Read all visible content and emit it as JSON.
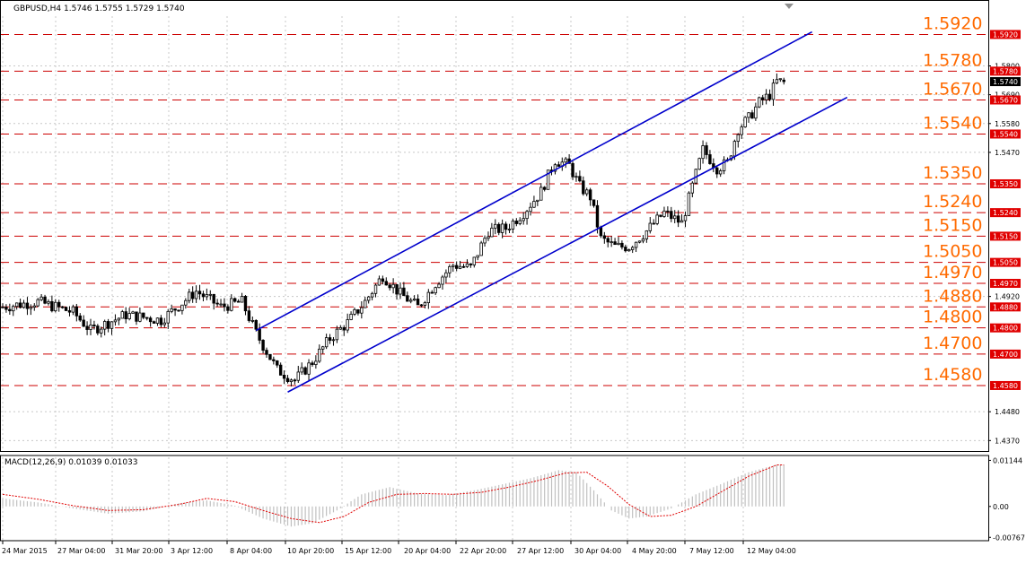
{
  "chart_data": [
    {
      "type": "candlestick",
      "title": "GBPUSD,H4  1.5746 1.5755 1.5729 1.5740",
      "symbol": "GBPUSD",
      "timeframe": "H4",
      "last_bar": {
        "open": 1.5746,
        "high": 1.5755,
        "low": 1.5729,
        "close": 1.574
      },
      "current_price_label": "1.5740",
      "ylim": [
        1.433,
        1.599
      ],
      "y_ticks": [
        "1.5800",
        "1.5690",
        "1.5580",
        "1.5470",
        "1.4920",
        "1.4480",
        "1.4370"
      ],
      "x_ticks": [
        "24 Mar 2015",
        "27 Mar 04:00",
        "31 Mar 20:00",
        "3 Apr 12:00",
        "8 Apr 04:00",
        "10 Apr 20:00",
        "15 Apr 12:00",
        "20 Apr 04:00",
        "22 Apr 20:00",
        "27 Apr 12:00",
        "30 Apr 04:00",
        "4 May 20:00",
        "7 May 12:00",
        "12 May 04:00"
      ],
      "levels": [
        {
          "value": 1.592,
          "label": "1.5920",
          "tag": "1.5920"
        },
        {
          "value": 1.578,
          "label": "1.5780",
          "tag": "1.5780"
        },
        {
          "value": 1.567,
          "label": "1.5670",
          "tag": "1.5670"
        },
        {
          "value": 1.554,
          "label": "1.5540",
          "tag": "1.5540"
        },
        {
          "value": 1.535,
          "label": "1.5350",
          "tag": "1.5350"
        },
        {
          "value": 1.524,
          "label": "1.5240",
          "tag": "1.5240"
        },
        {
          "value": 1.515,
          "label": "1.5150",
          "tag": "1.5150"
        },
        {
          "value": 1.505,
          "label": "1.5050",
          "tag": "1.5050"
        },
        {
          "value": 1.497,
          "label": "1.4970",
          "tag": "1.4970"
        },
        {
          "value": 1.488,
          "label": "1.4880",
          "tag": "1.4880"
        },
        {
          "value": 1.48,
          "label": "1.4800",
          "tag": "1.4800"
        },
        {
          "value": 1.47,
          "label": "1.4700",
          "tag": "1.4700"
        },
        {
          "value": 1.458,
          "label": "1.4580",
          "tag": "1.4580"
        }
      ],
      "channel": {
        "upper": {
          "from": {
            "bar": 72,
            "price": 1.479
          },
          "to": {
            "bar": 230,
            "price": 1.593
          }
        },
        "lower": {
          "from": {
            "bar": 81,
            "price": 1.4555
          },
          "to": {
            "bar": 240,
            "price": 1.568
          }
        }
      },
      "anchors": [
        {
          "bar": 0,
          "price": 1.488
        },
        {
          "bar": 10,
          "price": 1.49
        },
        {
          "bar": 20,
          "price": 1.486
        },
        {
          "bar": 25,
          "price": 1.479
        },
        {
          "bar": 35,
          "price": 1.485
        },
        {
          "bar": 45,
          "price": 1.483
        },
        {
          "bar": 55,
          "price": 1.494
        },
        {
          "bar": 62,
          "price": 1.488
        },
        {
          "bar": 68,
          "price": 1.49
        },
        {
          "bar": 72,
          "price": 1.478
        },
        {
          "bar": 78,
          "price": 1.464
        },
        {
          "bar": 83,
          "price": 1.46
        },
        {
          "bar": 88,
          "price": 1.467
        },
        {
          "bar": 93,
          "price": 1.476
        },
        {
          "bar": 98,
          "price": 1.482
        },
        {
          "bar": 103,
          "price": 1.49
        },
        {
          "bar": 108,
          "price": 1.5
        },
        {
          "bar": 113,
          "price": 1.493
        },
        {
          "bar": 118,
          "price": 1.488
        },
        {
          "bar": 123,
          "price": 1.497
        },
        {
          "bar": 128,
          "price": 1.504
        },
        {
          "bar": 133,
          "price": 1.503
        },
        {
          "bar": 138,
          "price": 1.517
        },
        {
          "bar": 143,
          "price": 1.518
        },
        {
          "bar": 148,
          "price": 1.524
        },
        {
          "bar": 153,
          "price": 1.532
        },
        {
          "bar": 157,
          "price": 1.544
        },
        {
          "bar": 161,
          "price": 1.542
        },
        {
          "bar": 164,
          "price": 1.534
        },
        {
          "bar": 167,
          "price": 1.53
        },
        {
          "bar": 170,
          "price": 1.514
        },
        {
          "bar": 174,
          "price": 1.511
        },
        {
          "bar": 178,
          "price": 1.511
        },
        {
          "bar": 183,
          "price": 1.517
        },
        {
          "bar": 188,
          "price": 1.524
        },
        {
          "bar": 193,
          "price": 1.52
        },
        {
          "bar": 196,
          "price": 1.534
        },
        {
          "bar": 199,
          "price": 1.548
        },
        {
          "bar": 203,
          "price": 1.541
        },
        {
          "bar": 206,
          "price": 1.543
        },
        {
          "bar": 209,
          "price": 1.556
        },
        {
          "bar": 212,
          "price": 1.56
        },
        {
          "bar": 215,
          "price": 1.566
        },
        {
          "bar": 218,
          "price": 1.569
        },
        {
          "bar": 220,
          "price": 1.574
        }
      ],
      "panel_height_share": 0.81
    },
    {
      "type": "histogram",
      "title": "MACD(12,26,9) 0.01039 0.01033",
      "indicator": "MACD",
      "params": [
        12,
        26,
        9
      ],
      "main_value": 0.01039,
      "signal_value": 0.01033,
      "ylim": [
        -0.0085,
        0.0122
      ],
      "y_ticks": [
        "0.01144",
        "0.00",
        "-0.00767"
      ],
      "main_anchors": [
        {
          "bar": 0,
          "value": 0.002
        },
        {
          "bar": 10,
          "value": 0.001
        },
        {
          "bar": 20,
          "value": -0.0005
        },
        {
          "bar": 30,
          "value": -0.0018
        },
        {
          "bar": 40,
          "value": -0.0012
        },
        {
          "bar": 50,
          "value": 0.0008
        },
        {
          "bar": 58,
          "value": 0.0015
        },
        {
          "bar": 66,
          "value": 0.0002
        },
        {
          "bar": 74,
          "value": -0.003
        },
        {
          "bar": 82,
          "value": -0.005
        },
        {
          "bar": 88,
          "value": -0.0042
        },
        {
          "bar": 95,
          "value": -0.001
        },
        {
          "bar": 102,
          "value": 0.003
        },
        {
          "bar": 110,
          "value": 0.0048
        },
        {
          "bar": 118,
          "value": 0.0032
        },
        {
          "bar": 126,
          "value": 0.0028
        },
        {
          "bar": 134,
          "value": 0.004
        },
        {
          "bar": 142,
          "value": 0.0055
        },
        {
          "bar": 150,
          "value": 0.007
        },
        {
          "bar": 158,
          "value": 0.009
        },
        {
          "bar": 163,
          "value": 0.0085
        },
        {
          "bar": 168,
          "value": 0.004
        },
        {
          "bar": 173,
          "value": -0.001
        },
        {
          "bar": 178,
          "value": -0.003
        },
        {
          "bar": 183,
          "value": -0.0025
        },
        {
          "bar": 190,
          "value": -0.0005
        },
        {
          "bar": 197,
          "value": 0.003
        },
        {
          "bar": 204,
          "value": 0.0055
        },
        {
          "bar": 212,
          "value": 0.0085
        },
        {
          "bar": 220,
          "value": 0.0104
        }
      ],
      "signal_anchors": [
        {
          "bar": 0,
          "value": 0.003
        },
        {
          "bar": 10,
          "value": 0.0018
        },
        {
          "bar": 20,
          "value": 0.0002
        },
        {
          "bar": 30,
          "value": -0.001
        },
        {
          "bar": 40,
          "value": -0.0008
        },
        {
          "bar": 50,
          "value": 0.0005
        },
        {
          "bar": 58,
          "value": 0.002
        },
        {
          "bar": 66,
          "value": 0.0012
        },
        {
          "bar": 74,
          "value": -0.001
        },
        {
          "bar": 82,
          "value": -0.003
        },
        {
          "bar": 90,
          "value": -0.004
        },
        {
          "bar": 97,
          "value": -0.0025
        },
        {
          "bar": 104,
          "value": 0.001
        },
        {
          "bar": 112,
          "value": 0.003
        },
        {
          "bar": 120,
          "value": 0.0032
        },
        {
          "bar": 128,
          "value": 0.003
        },
        {
          "bar": 136,
          "value": 0.0035
        },
        {
          "bar": 144,
          "value": 0.0048
        },
        {
          "bar": 152,
          "value": 0.0064
        },
        {
          "bar": 160,
          "value": 0.0083
        },
        {
          "bar": 166,
          "value": 0.0085
        },
        {
          "bar": 172,
          "value": 0.005
        },
        {
          "bar": 178,
          "value": 0.0005
        },
        {
          "bar": 184,
          "value": -0.0025
        },
        {
          "bar": 190,
          "value": -0.0022
        },
        {
          "bar": 197,
          "value": 0.0
        },
        {
          "bar": 204,
          "value": 0.0035
        },
        {
          "bar": 212,
          "value": 0.0075
        },
        {
          "bar": 220,
          "value": 0.0103
        }
      ]
    }
  ],
  "colors": {
    "level_line": "#CC0000",
    "level_label": "#FF6A00",
    "tag_bg": "#E00000",
    "channel": "#0000CC",
    "candle": "#000000",
    "macd_histogram": "#C0C0C0",
    "macd_signal": "#E00000",
    "grid": "#C8C8C8",
    "price_tag_bg": "#000000"
  }
}
